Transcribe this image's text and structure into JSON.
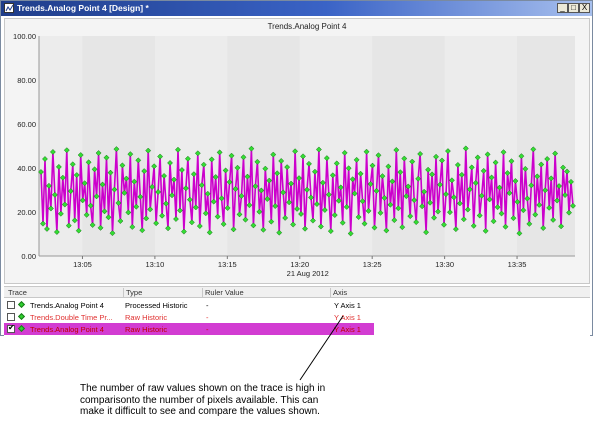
{
  "window": {
    "title": "Trends.Analog Point 4 [Design] *",
    "buttons": {
      "minimize": "_",
      "maximize": "□",
      "close": "X"
    }
  },
  "chart_data": {
    "type": "line",
    "title": "Trends.Analog Point 4",
    "xlabel": "21 Aug 2012",
    "ylabel": "",
    "x_ticks": [
      "13:05",
      "13:10",
      "13:15",
      "13:20",
      "13:25",
      "13:30",
      "13:35"
    ],
    "y_ticks": [
      "0.00",
      "20.00",
      "40.00",
      "60.00",
      "80.00",
      "100.00"
    ],
    "ylim": [
      0,
      100
    ],
    "x_start": "13:02",
    "x_end": "13:39",
    "grid": true,
    "series": [
      {
        "name": "Trends.Analog Point 4",
        "line_color": "#cc00cc",
        "marker_color": "#33dd33",
        "values": [
          38.2,
          14.7,
          44.1,
          12.3,
          31.9,
          21.6,
          47.3,
          27.8,
          10.9,
          40.5,
          19.2,
          35.6,
          23.4,
          48.1,
          13.8,
          29.5,
          41.7,
          16.2,
          36.8,
          11.5,
          45.9,
          25.3,
          33.1,
          18.7,
          42.6,
          22.9,
          14.1,
          39.4,
          27.1,
          46.8,
          12.8,
          32.5,
          20.3,
          44.7,
          17.6,
          37.9,
          10.4,
          30.2,
          48.6,
          24.1,
          15.9,
          41.2,
          28.7,
          35.2,
          19.8,
          46.3,
          13.2,
          33.8,
          22.4,
          43.5,
          26.9,
          11.7,
          38.6,
          17.1,
          47.9,
          21.2,
          31.4,
          40.8,
          14.9,
          29.1,
          45.2,
          18.3,
          36.4,
          23.8,
          12.6,
          42.3,
          27.6,
          34.7,
          16.8,
          48.3,
          20.7,
          39.1,
          11.1,
          30.8,
          44.2,
          25.6,
          15.3,
          37.2,
          22.1,
          46.7,
          13.6,
          32.2,
          41.5,
          19.4,
          28.3,
          10.7,
          43.9,
          24.7,
          35.9,
          17.9,
          47.1,
          26.2,
          14.5,
          38.9,
          21.8,
          33.6,
          45.6,
          12.1,
          30.5,
          40.1,
          18.9,
          27.3,
          44.9,
          16.5,
          36.1,
          23.1,
          48.8,
          13.9,
          31.7,
          42.8,
          20.1,
          29.8,
          11.9,
          39.7,
          25.9,
          34.3,
          15.6,
          46.1,
          22.7,
          37.6,
          10.6,
          43.2,
          28.9,
          17.3,
          40.4,
          24.4,
          32.9,
          14.3,
          47.6,
          21.4,
          35.4,
          19.1,
          45.3,
          12.4,
          30.1,
          41.9,
          26.6,
          16.1,
          38.3,
          23.6,
          48.4,
          13.4,
          33.3,
          20.9,
          44.5,
          27.9,
          11.3,
          36.7,
          18.6,
          42.1,
          25.1,
          31.2,
          15.1,
          46.9,
          22.3,
          39.9,
          10.2,
          34.9,
          28.4,
          43.7,
          17.7,
          37.4,
          24.9,
          14.7,
          47.4,
          20.5,
          32.7,
          41.1,
          12.9,
          29.6,
          45.8,
          19.6,
          36.3,
          26.4,
          11.6,
          40.7,
          23.3,
          33.9,
          16.3,
          48.2,
          21.7,
          38.1,
          13.1,
          44.3,
          27.2,
          31.6,
          18.1,
          42.9,
          25.4,
          15.4,
          35.1,
          46.4,
          22.6,
          29.2,
          10.8,
          39.2,
          24.2,
          37.1,
          17.4,
          45.1,
          20.2,
          32.4,
          43.4,
          14.2,
          28.1,
          47.7,
          19.9,
          34.4,
          26.7,
          12.2,
          41.4,
          23.9,
          36.9,
          16.7,
          48.9,
          21.1,
          30.3,
          40.3,
          13.7,
          33.2,
          44.8,
          18.4,
          27.4,
          38.7,
          11.4,
          46.2,
          25.7,
          35.7,
          15.8,
          42.5,
          22.2,
          31.1,
          19.3,
          47.2,
          13.3,
          37.7,
          28.6,
          43.1,
          17.2,
          34.1,
          24.6,
          10.3,
          45.4,
          20.8,
          39.6,
          26.1,
          14.6,
          32.1,
          48.5,
          18.8,
          36.2,
          23.2,
          41.6,
          12.7,
          29.9,
          44.1,
          21.9,
          35.3,
          16.4,
          46.6,
          25.2,
          31.8,
          13.5,
          40.2,
          27.7,
          38.4,
          19.7,
          33.7,
          22.8
        ]
      }
    ]
  },
  "grid": {
    "columns": [
      "Trace",
      "Type",
      "Ruler Value",
      "Axis"
    ],
    "rows": [
      {
        "checked": false,
        "trace": "Trends.Analog Point 4",
        "type": "Processed Historic",
        "ruler_value": "-",
        "axis": "Y Axis 1",
        "style": "normal"
      },
      {
        "checked": false,
        "trace": "Trends.Double Time Pr...",
        "type": "Raw Historic",
        "ruler_value": "-",
        "axis": "Y Axis 1",
        "style": "red"
      },
      {
        "checked": true,
        "check_mark": "✔",
        "trace": "Trends.Analog Point 4",
        "type": "Raw Historic",
        "ruler_value": "-",
        "axis": "Y Axis 1",
        "style": "selected"
      }
    ]
  },
  "annotation": {
    "lines": [
      "The number of raw values shown on the trace is high in",
      "comparisonto the number of pixels available. This can",
      "make it difficult to see and compare the values shown."
    ]
  },
  "colors": {
    "title_bar": "#2a4fb0",
    "chart_background": "#f4f4f4",
    "series_line": "#cc00cc",
    "marker": "#33dd33",
    "selected_row": "#d23cd2",
    "red_text": "#e03030"
  }
}
